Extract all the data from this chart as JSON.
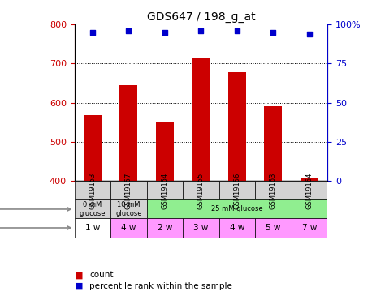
{
  "title": "GDS647 / 198_g_at",
  "samples": [
    "GSM19153",
    "GSM19157",
    "GSM19154",
    "GSM19155",
    "GSM19156",
    "GSM19163",
    "GSM19164"
  ],
  "counts": [
    568,
    645,
    550,
    715,
    678,
    592,
    407
  ],
  "percentiles": [
    95,
    96,
    95,
    96,
    96,
    95,
    94
  ],
  "ylim_left": [
    400,
    800
  ],
  "ylim_right": [
    0,
    100
  ],
  "yticks_left": [
    400,
    500,
    600,
    700,
    800
  ],
  "yticks_right": [
    0,
    25,
    50,
    75,
    100
  ],
  "ytick_labels_right": [
    "0",
    "25",
    "50",
    "75",
    "100%"
  ],
  "bar_color": "#cc0000",
  "scatter_color": "#0000cc",
  "time_labels": [
    "1 w",
    "4 w",
    "2 w",
    "3 w",
    "4 w",
    "5 w",
    "7 w"
  ],
  "time_colors": [
    "#ffffff",
    "#ff99ff",
    "#ff99ff",
    "#ff99ff",
    "#ff99ff",
    "#ff99ff",
    "#ff99ff"
  ],
  "gp_spans": [
    1,
    1,
    5
  ],
  "gp_colors": [
    "#d3d3d3",
    "#d3d3d3",
    "#90ee90"
  ],
  "gp_labels": [
    "0 mM\nglucose",
    "10 mM\nglucose",
    "25 mM glucose"
  ],
  "legend_red_label": "count",
  "legend_blue_label": "percentile rank within the sample",
  "left_axis_color": "#cc0000",
  "right_axis_color": "#0000cc",
  "sample_box_color": "#d3d3d3"
}
